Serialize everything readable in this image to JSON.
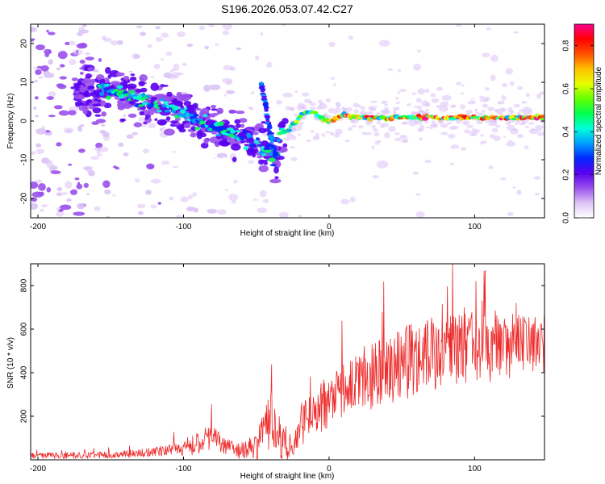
{
  "figure_title": "S196.2026.053.07.42.C27",
  "chart_data": [
    {
      "type": "heatmap",
      "name": "spectrogram",
      "xlabel": "Height of straight line (km)",
      "ylabel": "Frequency (Hz)",
      "xlim": [
        -205,
        148
      ],
      "ylim": [
        -25,
        25
      ],
      "xticks": [
        -200,
        -100,
        0,
        100
      ],
      "xtick_labels": [
        "-200",
        "-100",
        "0",
        "100"
      ],
      "yticks": [
        -20,
        -10,
        0,
        10,
        20
      ],
      "ytick_labels": [
        "-20",
        "-10",
        "0",
        "10",
        "20"
      ],
      "grid": false,
      "ridge": {
        "x": [
          -155,
          -140,
          -130,
          -120,
          -110,
          -100,
          -90,
          -80,
          -70,
          -60,
          -50,
          -45,
          -40,
          -36,
          -33,
          -30,
          -25,
          -20,
          -15,
          -10,
          -5,
          0,
          10,
          20,
          40,
          60,
          80,
          100,
          120,
          148
        ],
        "y": [
          8,
          7,
          6,
          5,
          3.5,
          2,
          0,
          -1,
          -2.5,
          -4,
          -6,
          -7,
          -8.5,
          -10,
          -2,
          -3,
          -1,
          1,
          2.5,
          2,
          0.5,
          0,
          1.5,
          1,
          0.8,
          1,
          0.8,
          1,
          0.8,
          1
        ]
      },
      "branch": {
        "x": [
          -47,
          -44,
          -42,
          -40,
          -38,
          -36
        ],
        "y": [
          10,
          5,
          0,
          -4,
          -7,
          -10
        ]
      },
      "colorbar": {
        "label": "Normalized spectral amplitude",
        "range": [
          0,
          0.9
        ],
        "ticks": [
          0,
          0.2,
          0.4,
          0.6,
          0.8
        ],
        "tick_labels": [
          "0.0",
          "0.2",
          "0.4",
          "0.6",
          "0.8"
        ],
        "colors": [
          "#ffffff",
          "#dcc3f5",
          "#9a50ec",
          "#5a00f0",
          "#0028ff",
          "#00a0ff",
          "#00ffd8",
          "#00ff50",
          "#64ff00",
          "#e6ff00",
          "#ffc000",
          "#ff5000",
          "#ff0000",
          "#ff0090"
        ]
      }
    },
    {
      "type": "line",
      "name": "snr",
      "xlabel": "Height of straight line (km)",
      "ylabel": "SNR (10 * v/v)",
      "xlim": [
        -205,
        148
      ],
      "ylim": [
        0,
        900
      ],
      "xticks": [
        -200,
        -100,
        0,
        100
      ],
      "xtick_labels": [
        "-200",
        "-100",
        "0",
        "100"
      ],
      "yticks": [
        200,
        400,
        600,
        800
      ],
      "ytick_labels": [
        "200",
        "400",
        "600",
        "800"
      ],
      "grid": false,
      "series": [
        {
          "name": "SNR",
          "color": "#ee2a2a",
          "envelope_x": [
            -205,
            -150,
            -120,
            -100,
            -90,
            -80,
            -70,
            -60,
            -50,
            -40,
            -30,
            -25,
            -20,
            -10,
            0,
            10,
            20,
            30,
            40,
            60,
            80,
            100,
            120,
            148
          ],
          "envelope_y": [
            18,
            22,
            35,
            55,
            75,
            100,
            60,
            40,
            60,
            160,
            60,
            45,
            140,
            220,
            270,
            310,
            360,
            390,
            420,
            470,
            500,
            510,
            520,
            540
          ],
          "spread_y": [
            14,
            16,
            20,
            35,
            50,
            60,
            35,
            40,
            60,
            150,
            60,
            50,
            100,
            110,
            120,
            130,
            140,
            160,
            170,
            180,
            180,
            170,
            150,
            140
          ]
        }
      ]
    }
  ]
}
